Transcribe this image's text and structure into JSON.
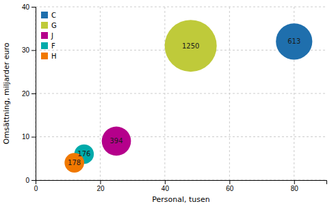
{
  "chart_data": {
    "type": "bubble",
    "series": [
      {
        "name": "C",
        "color": "#1f6fad",
        "x": [
          80
        ],
        "values": [
          32
        ],
        "sizes": [
          613
        ]
      },
      {
        "name": "G",
        "color": "#bfca3a",
        "x": [
          48
        ],
        "values": [
          31
        ],
        "sizes": [
          1250
        ]
      },
      {
        "name": "J",
        "color": "#b5008b",
        "x": [
          25
        ],
        "values": [
          9
        ],
        "sizes": [
          394
        ]
      },
      {
        "name": "F",
        "color": "#00aaaa",
        "x": [
          15
        ],
        "values": [
          6
        ],
        "sizes": [
          176
        ]
      },
      {
        "name": "H",
        "color": "#f07800",
        "x": [
          12
        ],
        "values": [
          4
        ],
        "sizes": [
          178
        ]
      }
    ],
    "xlim": [
      0,
      90
    ],
    "ylim": [
      0,
      40
    ],
    "xticks": [
      0,
      20,
      40,
      60,
      80
    ],
    "yticks": [
      0,
      10,
      20,
      30,
      40
    ],
    "xlabel": "Personal, tusen",
    "ylabel": "Omsättning, miljarder euro",
    "grid": true,
    "legend": "upper left",
    "data_labels": true
  }
}
